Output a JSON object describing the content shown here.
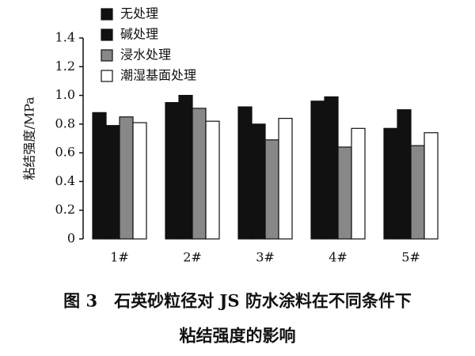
{
  "chart_data": {
    "type": "bar",
    "y_label": "粘结强度/MPa",
    "caption": [
      "图 3　石英砂粒径对 JS 防水涂料在不同条件下",
      "粘结强度的影响"
    ],
    "categories": [
      "1#",
      "2#",
      "3#",
      "4#",
      "5#"
    ],
    "series": [
      {
        "name": "无处理",
        "color": "#111111",
        "values": [
          0.88,
          0.95,
          0.92,
          0.96,
          0.77
        ]
      },
      {
        "name": "碱处理",
        "color": "#111111",
        "values": [
          0.79,
          1.0,
          0.8,
          0.99,
          0.9
        ]
      },
      {
        "name": "浸水处理",
        "color": "#888888",
        "values": [
          0.85,
          0.91,
          0.69,
          0.64,
          0.65
        ]
      },
      {
        "name": "潮湿基面处理",
        "color": "#ffffff",
        "values": [
          0.81,
          0.82,
          0.84,
          0.77,
          0.74
        ]
      }
    ],
    "ylim": [
      0,
      1.4
    ],
    "yticks": [
      0,
      0.2,
      0.4,
      0.6,
      0.8,
      {
        "value": 1,
        "label": "1.0"
      },
      1.2,
      1.4
    ]
  }
}
